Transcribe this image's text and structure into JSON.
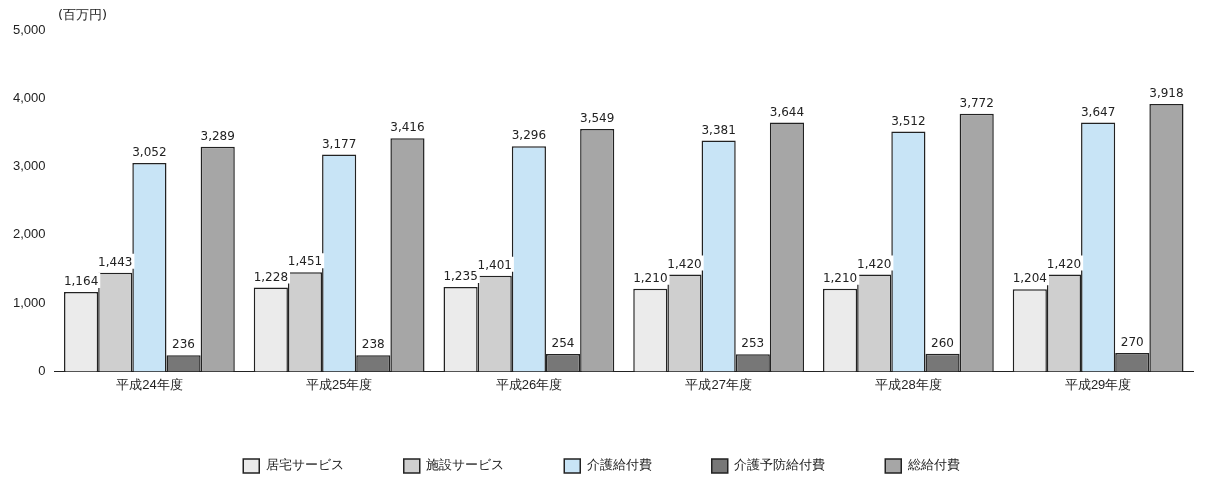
{
  "chart_data": {
    "type": "bar",
    "ylabel": "(百万円)",
    "categories": [
      "平成24年度",
      "平成25年度",
      "平成26年度",
      "平成27年度",
      "平成28年度",
      "平成29年度"
    ],
    "series": [
      {
        "name": "居宅サービス",
        "color": "#ebebeb",
        "values": [
          1164,
          1228,
          1235,
          1210,
          1210,
          1204
        ],
        "value_labels": [
          "1,164",
          "1,228",
          "1,235",
          "1,210",
          "1,210",
          "1,204"
        ]
      },
      {
        "name": "施設サービス",
        "color": "#cfcfcf",
        "values": [
          1443,
          1451,
          1401,
          1420,
          1420,
          1420
        ],
        "value_labels": [
          "1,443",
          "1,451",
          "1,401",
          "1,420",
          "1,420",
          "1,420"
        ]
      },
      {
        "name": "介護給付費",
        "color": "#c8e4f6",
        "values": [
          3052,
          3177,
          3296,
          3381,
          3512,
          3647
        ],
        "value_labels": [
          "3,052",
          "3,177",
          "3,296",
          "3,381",
          "3,512",
          "3,647"
        ]
      },
      {
        "name": "介護予防給付費",
        "color": "#777777",
        "values": [
          236,
          238,
          254,
          253,
          260,
          270
        ],
        "value_labels": [
          "236",
          "238",
          "254",
          "253",
          "260",
          "270"
        ]
      },
      {
        "name": "総給付費",
        "color": "#a6a6a6",
        "values": [
          3289,
          3416,
          3549,
          3644,
          3772,
          3918
        ],
        "value_labels": [
          "3,289",
          "3,416",
          "3,549",
          "3,644",
          "3,772",
          "3,918"
        ]
      }
    ],
    "ylim": [
      0,
      5000
    ],
    "yticks": [
      {
        "value": 0,
        "label": "0"
      },
      {
        "value": 1000,
        "label": "1,000"
      },
      {
        "value": 2000,
        "label": "2,000"
      },
      {
        "value": 3000,
        "label": "3,000"
      },
      {
        "value": 4000,
        "label": "4,000"
      },
      {
        "value": 5000,
        "label": "5,000"
      }
    ],
    "grid": false,
    "legend": "bottom"
  }
}
